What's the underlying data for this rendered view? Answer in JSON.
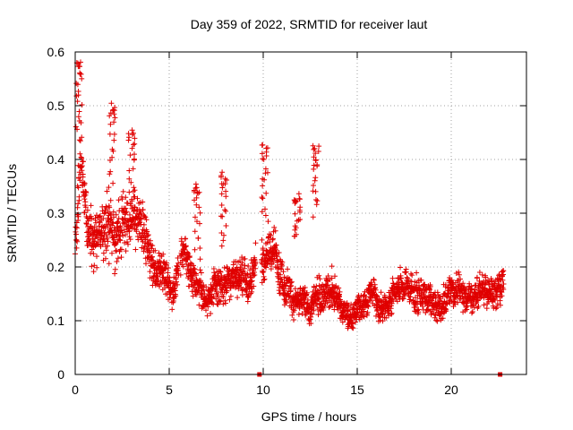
{
  "chart_data": {
    "type": "scatter",
    "title": "Day 359 of 2022, SRMTID for receiver laut",
    "xlabel": "GPS time / hours",
    "ylabel": "SRMTID / TECUs",
    "xlim": [
      0,
      24
    ],
    "ylim": [
      0,
      0.6
    ],
    "xticks": [
      0,
      5,
      10,
      15,
      20
    ],
    "xtick_labels": [
      "0",
      "5",
      "10",
      "15",
      "20"
    ],
    "yticks": [
      0,
      0.1,
      0.2,
      0.3,
      0.4,
      0.5,
      0.6
    ],
    "ytick_labels": [
      "0",
      "0.1",
      "0.2",
      "0.3",
      "0.4",
      "0.5",
      "0.6"
    ],
    "grid": true,
    "marker": "plus",
    "color": "#e00000",
    "envelope": [
      [
        0.0,
        0.24,
        0.07
      ],
      [
        0.3,
        0.4,
        0.14
      ],
      [
        0.7,
        0.26,
        0.08
      ],
      [
        1.2,
        0.27,
        0.08
      ],
      [
        2.0,
        0.27,
        0.09
      ],
      [
        2.7,
        0.3,
        0.09
      ],
      [
        3.4,
        0.28,
        0.08
      ],
      [
        4.0,
        0.22,
        0.07
      ],
      [
        4.6,
        0.19,
        0.06
      ],
      [
        5.2,
        0.14,
        0.05
      ],
      [
        5.8,
        0.23,
        0.06
      ],
      [
        6.4,
        0.18,
        0.05
      ],
      [
        7.0,
        0.14,
        0.05
      ],
      [
        7.6,
        0.16,
        0.06
      ],
      [
        8.2,
        0.17,
        0.06
      ],
      [
        8.8,
        0.19,
        0.06
      ],
      [
        9.4,
        0.18,
        0.06
      ],
      [
        10.0,
        0.21,
        0.07
      ],
      [
        10.6,
        0.23,
        0.07
      ],
      [
        11.2,
        0.17,
        0.06
      ],
      [
        11.8,
        0.13,
        0.05
      ],
      [
        12.4,
        0.12,
        0.05
      ],
      [
        12.9,
        0.14,
        0.06
      ],
      [
        13.4,
        0.16,
        0.06
      ],
      [
        14.0,
        0.14,
        0.05
      ],
      [
        14.6,
        0.1,
        0.04
      ],
      [
        15.2,
        0.13,
        0.05
      ],
      [
        15.8,
        0.15,
        0.05
      ],
      [
        16.4,
        0.12,
        0.05
      ],
      [
        17.0,
        0.16,
        0.05
      ],
      [
        17.6,
        0.17,
        0.06
      ],
      [
        18.2,
        0.15,
        0.05
      ],
      [
        18.8,
        0.14,
        0.05
      ],
      [
        19.4,
        0.12,
        0.05
      ],
      [
        20.0,
        0.16,
        0.06
      ],
      [
        20.6,
        0.15,
        0.05
      ],
      [
        21.2,
        0.15,
        0.05
      ],
      [
        21.8,
        0.16,
        0.05
      ],
      [
        22.4,
        0.15,
        0.05
      ],
      [
        22.8,
        0.18,
        0.05
      ]
    ],
    "peaks": [
      {
        "x": 0.2,
        "ymin": 0.45,
        "ymax": 0.58
      },
      {
        "x": 1.95,
        "ymin": 0.35,
        "ymax": 0.5
      },
      {
        "x": 3.0,
        "ymin": 0.32,
        "ymax": 0.45
      },
      {
        "x": 10.1,
        "ymin": 0.28,
        "ymax": 0.42
      },
      {
        "x": 12.8,
        "ymin": 0.3,
        "ymax": 0.42
      },
      {
        "x": 6.5,
        "ymin": 0.22,
        "ymax": 0.35
      },
      {
        "x": 7.9,
        "ymin": 0.24,
        "ymax": 0.37
      },
      {
        "x": 11.8,
        "ymin": 0.25,
        "ymax": 0.33
      }
    ],
    "gaps": [
      [
        5.5,
        5.6
      ],
      [
        9.6,
        9.9
      ]
    ],
    "points_per_hour": 110,
    "axis_markers": [
      {
        "x": 9.8,
        "y": 0
      },
      {
        "x": 22.6,
        "y": 0
      }
    ]
  }
}
